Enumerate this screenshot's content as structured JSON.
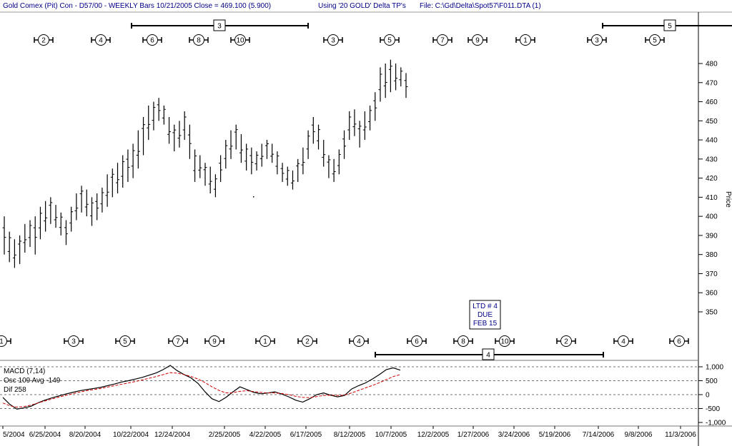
{
  "header": {
    "title": "Gold Comex (Pit) Con - D57/00  - WEEKLY Bars  10/21/2005 Close = 469.100 (5.900)",
    "using": "Using '20 GOLD' Delta TP's",
    "file": "File: C:\\Gd\\Delta\\Spot57\\F011.DTA (1)"
  },
  "chart_data": [
    {
      "type": "ohlc",
      "ylabel": "Price",
      "ylim": [
        340,
        485
      ],
      "yticks": [
        350,
        360,
        370,
        380,
        390,
        400,
        410,
        420,
        430,
        440,
        450,
        460,
        470,
        480
      ],
      "xticks": [
        "5/2004",
        "6/25/2004",
        "8/20/2004",
        "10/22/2004",
        "12/24/2004",
        "2/25/2005",
        "4/22/2005",
        "6/17/2005",
        "8/12/2005",
        "10/7/2005",
        "12/2/2005",
        "1/27/2006",
        "3/24/2006",
        "5/19/2006",
        "7/14/2006",
        "9/8/2006",
        "11/3/2006"
      ],
      "bars_low_high": [
        [
          380,
          400
        ],
        [
          376,
          392
        ],
        [
          373,
          388
        ],
        [
          375,
          390
        ],
        [
          381,
          396
        ],
        [
          384,
          398
        ],
        [
          380,
          400
        ],
        [
          388,
          405
        ],
        [
          392,
          408
        ],
        [
          396,
          410
        ],
        [
          394,
          406
        ],
        [
          390,
          402
        ],
        [
          385,
          398
        ],
        [
          392,
          405
        ],
        [
          398,
          412
        ],
        [
          402,
          416
        ],
        [
          400,
          414
        ],
        [
          395,
          410
        ],
        [
          398,
          412
        ],
        [
          402,
          415
        ],
        [
          405,
          422
        ],
        [
          410,
          425
        ],
        [
          412,
          428
        ],
        [
          415,
          432
        ],
        [
          418,
          435
        ],
        [
          420,
          438
        ],
        [
          425,
          445
        ],
        [
          432,
          452
        ],
        [
          440,
          458
        ],
        [
          445,
          460
        ],
        [
          450,
          462
        ],
        [
          448,
          458
        ],
        [
          438,
          452
        ],
        [
          434,
          448
        ],
        [
          436,
          450
        ],
        [
          440,
          455
        ],
        [
          430,
          448
        ],
        [
          418,
          435
        ],
        [
          420,
          432
        ],
        [
          416,
          428
        ],
        [
          412,
          426
        ],
        [
          410,
          422
        ],
        [
          418,
          432
        ],
        [
          425,
          440
        ],
        [
          430,
          445
        ],
        [
          435,
          448
        ],
        [
          428,
          443
        ],
        [
          424,
          438
        ],
        [
          422,
          436
        ],
        [
          424,
          434
        ],
        [
          426,
          438
        ],
        [
          430,
          440
        ],
        [
          428,
          438
        ],
        [
          422,
          434
        ],
        [
          418,
          428
        ],
        [
          416,
          426
        ],
        [
          414,
          424
        ],
        [
          418,
          430
        ],
        [
          422,
          436
        ],
        [
          430,
          445
        ],
        [
          438,
          452
        ],
        [
          435,
          448
        ],
        [
          426,
          440
        ],
        [
          420,
          432
        ],
        [
          418,
          430
        ],
        [
          422,
          435
        ],
        [
          430,
          445
        ],
        [
          440,
          455
        ],
        [
          442,
          456
        ],
        [
          436,
          450
        ],
        [
          440,
          455
        ],
        [
          445,
          458
        ],
        [
          450,
          465
        ],
        [
          460,
          478
        ],
        [
          462,
          480
        ],
        [
          465,
          482
        ],
        [
          466,
          480
        ],
        [
          468,
          478
        ],
        [
          462,
          475
        ]
      ],
      "text_box": [
        "LTD # 4",
        "DUE",
        "FEB 15"
      ]
    },
    {
      "type": "line",
      "title": "MACD (7,14)",
      "stats": [
        "Osc 109 Avg -149",
        "Dif 258"
      ],
      "ylim": [
        -1000,
        1000
      ],
      "yticks": [
        "1,000",
        "500",
        "0",
        "-500",
        "-1,000"
      ],
      "series": [
        {
          "values": [
            -100,
            -350,
            -520,
            -480,
            -420,
            -300,
            -200,
            -120,
            -50,
            20,
            80,
            140,
            180,
            220,
            260,
            320,
            380,
            450,
            500,
            560,
            620,
            700,
            780,
            900,
            1050,
            860,
            720,
            600,
            400,
            100,
            -150,
            -250,
            -100,
            100,
            280,
            180,
            80,
            30,
            60,
            100,
            20,
            -80,
            -200,
            -270,
            -150,
            0,
            60,
            -20,
            -80,
            -30,
            200,
            320,
            420,
            560,
            720,
            900,
            960,
            880
          ]
        },
        {
          "values": [
            -300,
            -400,
            -450,
            -430,
            -380,
            -300,
            -230,
            -160,
            -90,
            -30,
            30,
            90,
            140,
            180,
            220,
            270,
            320,
            370,
            420,
            470,
            530,
            590,
            650,
            720,
            790,
            770,
            720,
            650,
            560,
            430,
            280,
            150,
            60,
            70,
            120,
            140,
            110,
            80,
            60,
            60,
            40,
            0,
            -60,
            -100,
            -110,
            -70,
            -30,
            -20,
            -30,
            -20,
            60,
            150,
            240,
            330,
            430,
            540,
            650,
            720
          ]
        }
      ]
    }
  ],
  "cycle_markers": {
    "top_row": [
      "2",
      "4",
      "6",
      "8",
      "10",
      "3",
      "5",
      "7",
      "9",
      "1",
      "3",
      "5"
    ],
    "bottom_row": [
      "1",
      "3",
      "5",
      "7",
      "9",
      "1",
      "2",
      "4",
      "6",
      "8",
      "10",
      "2",
      "4",
      "6"
    ],
    "top_boxes": [
      "3",
      "5"
    ],
    "bottom_box": "4"
  }
}
